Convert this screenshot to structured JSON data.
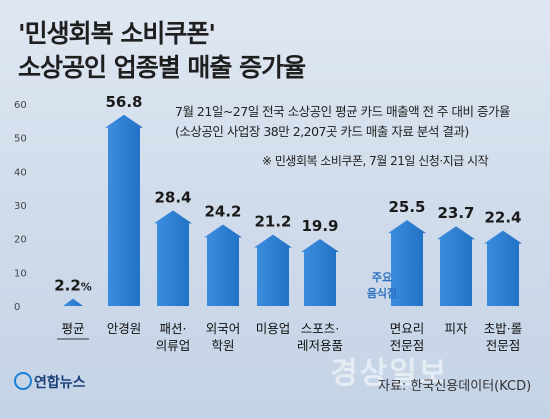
{
  "title_line1": "'민생회복 소비쿠폰'",
  "title_line2": "소상공인 업종별 매출 증가율",
  "note_line1": "7월 21일~27일 전국 소상공인 평균 카드 매출액 전 주 대비 증가율",
  "note_line2": "(소상공인 사업장 38만 2,207곳 카드 매출 자료 분석 결과)",
  "note_line3": "※ 민생회복 소비쿠폰, 7월 21일 신청·지급 시작",
  "highlight_line1": "주요",
  "highlight_line2": "음식점",
  "source": "자료: 한국신용데이터(KCD)",
  "logo_text": "연합뉴스",
  "watermark_text": "경상일보",
  "colors": {
    "bar": "#1f6fc4",
    "bar_light": "#3f8fe0",
    "axis_text": "#444444"
  },
  "chart_data": {
    "type": "bar",
    "title": "",
    "xlabel": "",
    "ylabel": "",
    "ylim": [
      0,
      60
    ],
    "yticks": [
      0,
      10,
      20,
      30,
      40,
      50,
      60
    ],
    "grid": false,
    "categories": [
      [
        "평균"
      ],
      [
        "안경원"
      ],
      [
        "패션·",
        "의류업"
      ],
      [
        "외국어",
        "학원"
      ],
      [
        "미용업"
      ],
      [
        "스포츠·",
        "레저용품"
      ],
      [
        "면요리",
        "전문점"
      ],
      [
        "피자"
      ],
      [
        "초밥·롤",
        "전문점"
      ]
    ],
    "values": [
      2.2,
      56.8,
      28.4,
      24.2,
      21.2,
      19.9,
      25.5,
      23.7,
      22.4
    ],
    "value_labels": [
      "2.2",
      "56.8",
      "28.4",
      "24.2",
      "21.2",
      "19.9",
      "25.5",
      "23.7",
      "22.4"
    ],
    "first_label_unit": "%"
  }
}
